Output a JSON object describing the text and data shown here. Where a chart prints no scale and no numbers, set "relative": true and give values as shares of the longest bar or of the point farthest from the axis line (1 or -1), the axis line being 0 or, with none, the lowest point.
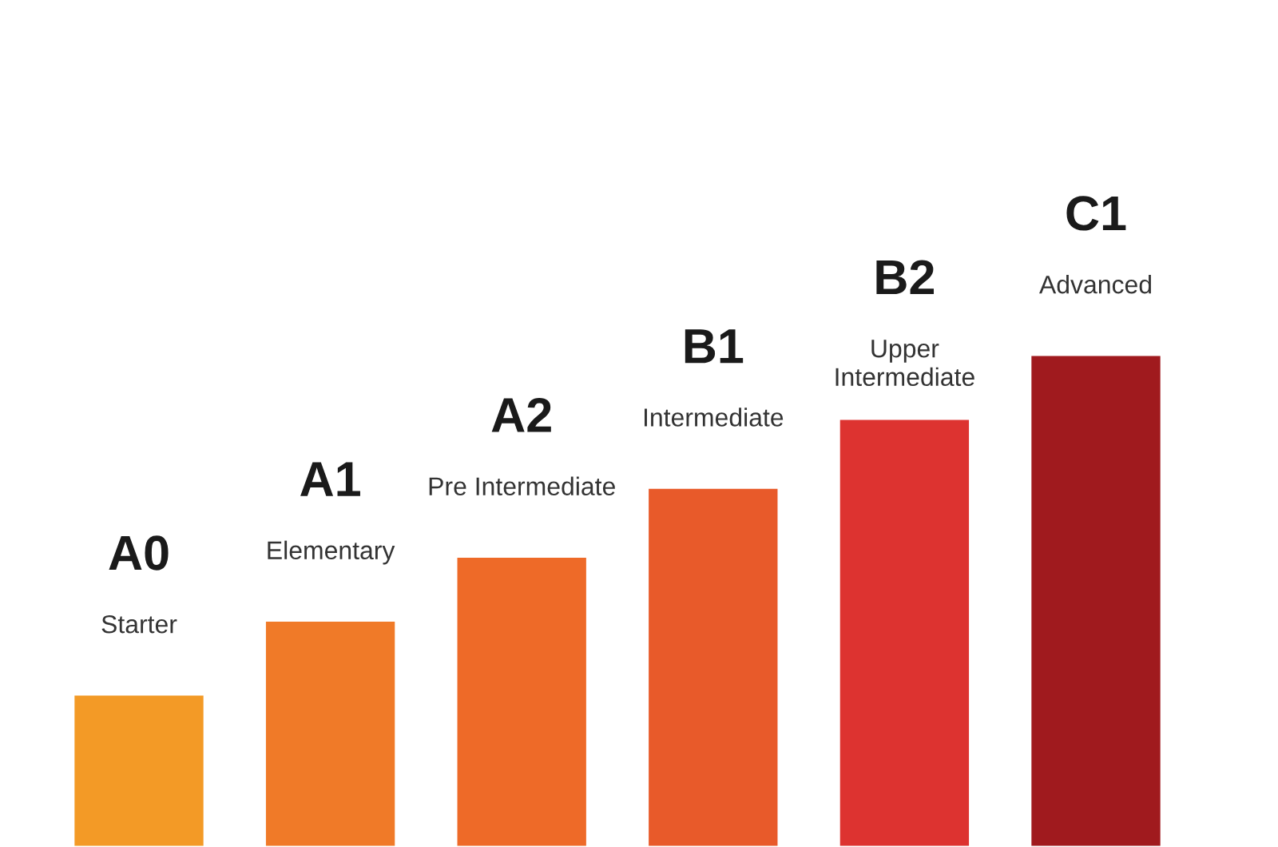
{
  "chart_data": {
    "type": "bar",
    "relative": true,
    "categories": [
      "A0",
      "A1",
      "A2",
      "B1",
      "B2",
      "C1"
    ],
    "values": [
      0.31,
      0.46,
      0.59,
      0.73,
      0.87,
      1
    ],
    "colors": [
      "#f39a26",
      "#f07a28",
      "#ee6a28",
      "#e85a2a",
      "#dd3330",
      "#a01a1e"
    ],
    "annotations": [
      "Starter",
      "Elementary",
      "Pre Intermediate",
      "Intermediate",
      "Upper\nIntermediate",
      "Advanced"
    ]
  }
}
